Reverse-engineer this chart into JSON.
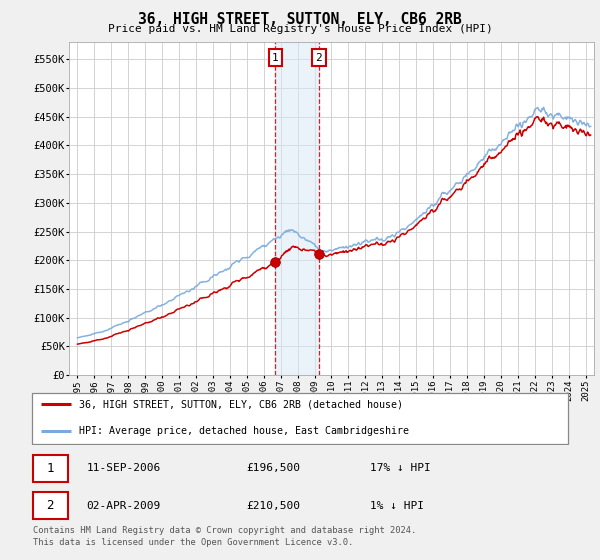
{
  "title": "36, HIGH STREET, SUTTON, ELY, CB6 2RB",
  "subtitle": "Price paid vs. HM Land Registry's House Price Index (HPI)",
  "ylabel_ticks": [
    "£0",
    "£50K",
    "£100K",
    "£150K",
    "£200K",
    "£250K",
    "£300K",
    "£350K",
    "£400K",
    "£450K",
    "£500K",
    "£550K"
  ],
  "ytick_vals": [
    0,
    50000,
    100000,
    150000,
    200000,
    250000,
    300000,
    350000,
    400000,
    450000,
    500000,
    550000
  ],
  "ylim": [
    0,
    580000
  ],
  "xlim": [
    1994.5,
    2025.5
  ],
  "purchase1_year": 2006.69,
  "purchase1_price": 196500,
  "purchase2_year": 2009.25,
  "purchase2_price": 210500,
  "shade_color": "#d6e8f7",
  "shade_alpha": 0.5,
  "vline_color": "#cc0000",
  "grid_color": "#cccccc",
  "fig_bg": "#f0f0f0",
  "plot_bg": "#ffffff",
  "red_color": "#cc0000",
  "blue_color": "#7aaadd",
  "legend_label_red": "36, HIGH STREET, SUTTON, ELY, CB6 2RB (detached house)",
  "legend_label_blue": "HPI: Average price, detached house, East Cambridgeshire",
  "table_rows": [
    {
      "num": "1",
      "date": "11-SEP-2006",
      "price": "£196,500",
      "pct": "17% ↓ HPI"
    },
    {
      "num": "2",
      "date": "02-APR-2009",
      "price": "£210,500",
      "pct": "1% ↓ HPI"
    }
  ],
  "footnote1": "Contains HM Land Registry data © Crown copyright and database right 2024.",
  "footnote2": "This data is licensed under the Open Government Licence v3.0."
}
